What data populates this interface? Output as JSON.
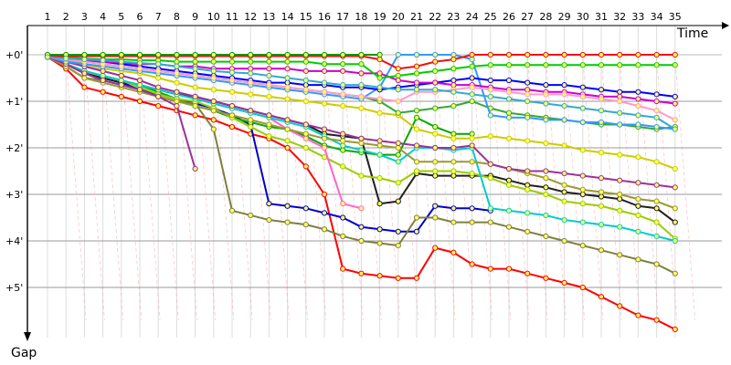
{
  "chart_data": {
    "type": "line",
    "title": "",
    "xlabel": "Time",
    "ylabel": "Gap",
    "laps": [
      1,
      2,
      3,
      4,
      5,
      6,
      7,
      8,
      9,
      10,
      11,
      12,
      13,
      14,
      15,
      16,
      17,
      18,
      19,
      20,
      21,
      22,
      23,
      24,
      25,
      26,
      27,
      28,
      29,
      30,
      31,
      32,
      33,
      34,
      35
    ],
    "x_labels": [
      "1",
      "2",
      "3",
      "4",
      "5",
      "6",
      "7",
      "8",
      "9",
      "10",
      "11",
      "12",
      "13",
      "14",
      "15",
      "16",
      "17",
      "18",
      "19",
      "20",
      "21",
      "22",
      "23",
      "24",
      "25",
      "26",
      "27",
      "28",
      "29",
      "30",
      "31",
      "32",
      "33",
      "34",
      "35"
    ],
    "y_ticks": [
      {
        "value": 0,
        "label": "+0'"
      },
      {
        "value": 1,
        "label": "+1'"
      },
      {
        "value": 2,
        "label": "+2'"
      },
      {
        "value": 3,
        "label": "+3'"
      },
      {
        "value": 4,
        "label": "+4'"
      },
      {
        "value": 5,
        "label": "+5'"
      }
    ],
    "ylim": [
      0,
      5.9
    ],
    "grid": true,
    "series": [
      {
        "color": "#ff0000",
        "values": [
          0.05,
          0.3,
          0.7,
          0.8,
          0.9,
          1.0,
          1.1,
          1.2,
          1.3,
          1.4,
          1.55,
          1.7,
          1.8,
          2.0,
          2.4,
          3.0,
          4.6,
          4.7,
          4.75,
          4.8,
          4.8,
          4.15,
          4.25,
          4.5,
          4.6,
          4.6,
          4.7,
          4.8,
          4.9,
          5.0,
          5.2,
          5.4,
          5.6,
          5.7,
          5.9
        ]
      },
      {
        "color": "#0000cc",
        "values": [
          0.05,
          0.2,
          0.4,
          0.5,
          0.6,
          0.75,
          0.85,
          0.95,
          1.05,
          1.15,
          1.3,
          1.5,
          3.2,
          3.25,
          3.3,
          3.4,
          3.5,
          3.7,
          3.75,
          3.8,
          3.8,
          3.25,
          3.3,
          3.3,
          3.35
        ]
      },
      {
        "color": "#00aa00",
        "values": [
          0.05,
          0.2,
          0.35,
          0.45,
          0.55,
          0.65,
          0.8,
          0.95,
          1.1,
          1.2,
          1.35,
          1.45,
          1.55,
          1.6,
          1.75,
          1.95,
          2.05,
          2.1,
          2.15,
          2.15,
          1.35,
          1.55,
          1.7,
          1.7
        ]
      },
      {
        "color": "#808040",
        "values": [
          0.05,
          0.25,
          0.5,
          0.55,
          0.65,
          0.75,
          0.9,
          1.0,
          1.05,
          1.6,
          3.35,
          3.45,
          3.55,
          3.6,
          3.65,
          3.75,
          3.9,
          4.0,
          4.05,
          4.1,
          3.5,
          3.5,
          3.6,
          3.6,
          3.6,
          3.7,
          3.8,
          3.9,
          4.0,
          4.1,
          4.2,
          4.3,
          4.4,
          4.5,
          4.7
        ]
      },
      {
        "color": "#202020",
        "values": [
          0.05,
          0.2,
          0.4,
          0.5,
          0.6,
          0.65,
          0.75,
          0.85,
          0.9,
          1.0,
          1.1,
          1.2,
          1.3,
          1.4,
          1.5,
          1.7,
          1.75,
          1.8,
          3.2,
          3.15,
          2.55,
          2.6,
          2.6,
          2.6,
          2.6,
          2.7,
          2.8,
          2.85,
          2.95,
          3.0,
          3.05,
          3.1,
          3.25,
          3.3,
          3.6
        ]
      },
      {
        "color": "#99cc00",
        "values": [
          0.05,
          0.2,
          0.35,
          0.45,
          0.55,
          0.7,
          0.85,
          0.95,
          1.0,
          1.15,
          1.35,
          1.55,
          1.75,
          1.85,
          2.0,
          2.2,
          2.4,
          2.6,
          2.65,
          2.75,
          2.5,
          2.5,
          2.5,
          2.55,
          2.65,
          2.8,
          2.9,
          3.0,
          3.15,
          3.2,
          3.25,
          3.35,
          3.45,
          3.6,
          3.95
        ]
      },
      {
        "color": "#ff66cc",
        "values": [
          0.05,
          0.15,
          0.25,
          0.35,
          0.45,
          0.55,
          0.7,
          0.8,
          0.9,
          1.05,
          1.15,
          1.25,
          1.35,
          1.6,
          1.8,
          2.0,
          3.2,
          3.3
        ]
      },
      {
        "color": "#00cccc",
        "values": [
          0.05,
          0.2,
          0.35,
          0.45,
          0.55,
          0.65,
          0.75,
          0.85,
          0.95,
          1.05,
          1.15,
          1.25,
          1.35,
          1.45,
          1.55,
          1.75,
          1.95,
          2.05,
          2.15,
          2.3,
          2.0,
          2.0,
          2.05,
          2.0,
          3.3,
          3.35,
          3.4,
          3.45,
          3.55,
          3.6,
          3.65,
          3.7,
          3.8,
          3.9,
          4.0
        ]
      },
      {
        "color": "#999933",
        "values": [
          0.05,
          0.25,
          0.5,
          0.6,
          0.7,
          0.8,
          0.9,
          1.0,
          1.1,
          1.2,
          1.3,
          1.4,
          1.5,
          1.6,
          1.7,
          1.8,
          1.85,
          1.9,
          1.95,
          2.0,
          2.3,
          2.3,
          2.3,
          2.3,
          2.35,
          2.45,
          2.55,
          2.65,
          2.8,
          2.9,
          2.95,
          3.0,
          3.1,
          3.15,
          3.3
        ]
      },
      {
        "color": "#993399",
        "values": [
          0.05,
          0.2,
          0.4,
          0.55,
          0.65,
          0.75,
          0.9,
          1.1,
          2.45
        ]
      },
      {
        "color": "#cccc00",
        "values": [
          0.05,
          0.1,
          0.2,
          0.3,
          0.35,
          0.4,
          0.5,
          0.6,
          0.7,
          0.75,
          0.8,
          0.85,
          0.9,
          0.95,
          1.0,
          1.05,
          1.1,
          1.15,
          1.25,
          1.3,
          1.6,
          1.7,
          1.8,
          1.8,
          1.75,
          1.8,
          1.85,
          1.9,
          1.95,
          2.05,
          2.1,
          2.15,
          2.2,
          2.3,
          2.45
        ]
      },
      {
        "color": "#33aa33",
        "values": [
          0.05,
          0.1,
          0.15,
          0.2,
          0.25,
          0.3,
          0.35,
          0.4,
          0.45,
          0.5,
          0.55,
          0.6,
          0.65,
          0.7,
          0.75,
          0.8,
          0.85,
          0.9,
          1.0,
          1.25,
          1.2,
          1.15,
          1.1,
          1.0,
          1.15,
          1.25,
          1.3,
          1.35,
          1.4,
          1.45,
          1.5,
          1.5,
          1.55,
          1.6,
          1.55
        ]
      },
      {
        "color": "#993399",
        "values": [
          0.05,
          0.15,
          0.25,
          0.35,
          0.45,
          0.55,
          0.7,
          0.8,
          0.9,
          1.0,
          1.1,
          1.2,
          1.3,
          1.4,
          1.5,
          1.6,
          1.7,
          1.8,
          1.85,
          1.9,
          1.95,
          2.0,
          2.0,
          1.95,
          2.35,
          2.45,
          2.5,
          2.5,
          2.55,
          2.6,
          2.65,
          2.7,
          2.75,
          2.8,
          2.85
        ]
      },
      {
        "color": "#3399ff",
        "values": [
          0.05,
          0.15,
          0.2,
          0.25,
          0.3,
          0.35,
          0.4,
          0.45,
          0.5,
          0.55,
          0.6,
          0.65,
          0.7,
          0.75,
          0.8,
          0.85,
          0.9,
          0.95,
          0.7,
          0.0,
          0.0,
          0.0,
          0.0,
          0.1,
          1.3,
          1.35,
          1.35,
          1.4,
          1.4,
          1.45,
          1.45,
          1.5,
          1.5,
          1.55,
          1.6
        ]
      },
      {
        "color": "#0000ff",
        "values": [
          0.05,
          0.08,
          0.12,
          0.15,
          0.2,
          0.25,
          0.3,
          0.35,
          0.4,
          0.45,
          0.5,
          0.55,
          0.6,
          0.6,
          0.65,
          0.65,
          0.7,
          0.7,
          0.75,
          0.7,
          0.65,
          0.6,
          0.55,
          0.5,
          0.55,
          0.55,
          0.6,
          0.65,
          0.65,
          0.7,
          0.75,
          0.8,
          0.8,
          0.85,
          0.9
        ]
      },
      {
        "color": "#cc00cc",
        "values": [
          0.05,
          0.1,
          0.12,
          0.15,
          0.17,
          0.2,
          0.2,
          0.25,
          0.25,
          0.3,
          0.3,
          0.3,
          0.3,
          0.3,
          0.35,
          0.35,
          0.35,
          0.4,
          0.4,
          0.55,
          0.6,
          0.6,
          0.65,
          0.65,
          0.7,
          0.75,
          0.75,
          0.8,
          0.8,
          0.85,
          0.9,
          0.9,
          0.95,
          1.0,
          1.05
        ]
      },
      {
        "color": "#00cc00",
        "values": [
          0.05,
          0.05,
          0.08,
          0.1,
          0.1,
          0.12,
          0.12,
          0.15,
          0.15,
          0.15,
          0.15,
          0.15,
          0.15,
          0.15,
          0.15,
          0.2,
          0.2,
          0.2,
          0.5,
          0.45,
          0.4,
          0.35,
          0.3,
          0.25,
          0.22,
          0.22,
          0.22,
          0.22,
          0.22,
          0.22,
          0.22,
          0.22,
          0.22,
          0.22,
          0.22
        ]
      },
      {
        "color": "#ee1111",
        "values": [
          0.03,
          0.03,
          0.03,
          0.03,
          0.03,
          0.03,
          0.03,
          0.03,
          0.03,
          0.03,
          0.03,
          0.03,
          0.03,
          0.03,
          0.03,
          0.03,
          0.03,
          0.03,
          0.1,
          0.3,
          0.25,
          0.15,
          0.1,
          0.0,
          0.0,
          0.0,
          0.0,
          0.0,
          0.0,
          0.0,
          0.0,
          0.0,
          0.0,
          0.0,
          0.0
        ]
      },
      {
        "color": "#009900",
        "values": [
          0.0,
          0.0,
          0.0,
          0.0,
          0.0,
          0.0,
          0.0,
          0.0,
          0.0,
          0.0,
          0.0,
          0.0,
          0.0,
          0.0,
          0.0,
          0.0,
          0.0,
          0.0,
          0.0
        ]
      },
      {
        "color": "#ff99cc",
        "values": [
          0.05,
          0.1,
          0.15,
          0.2,
          0.25,
          0.3,
          0.35,
          0.4,
          0.45,
          0.5,
          0.55,
          0.6,
          0.65,
          0.7,
          0.75,
          0.8,
          0.85,
          0.9,
          0.95,
          1.0,
          0.8,
          0.8,
          0.75,
          0.7,
          0.75,
          0.8,
          0.85,
          0.85,
          0.85,
          0.9,
          0.95,
          1.0,
          1.1,
          1.2,
          1.4
        ]
      },
      {
        "color": "#33aacc",
        "values": [
          0.05,
          0.08,
          0.1,
          0.12,
          0.15,
          0.18,
          0.2,
          0.25,
          0.3,
          0.35,
          0.38,
          0.4,
          0.45,
          0.5,
          0.55,
          0.6,
          0.65,
          0.65,
          0.7,
          0.75,
          0.75,
          0.75,
          0.8,
          0.85,
          0.9,
          0.95,
          1.0,
          1.05,
          1.1,
          1.15,
          1.2,
          1.25,
          1.3,
          1.35,
          1.6
        ]
      }
    ]
  }
}
